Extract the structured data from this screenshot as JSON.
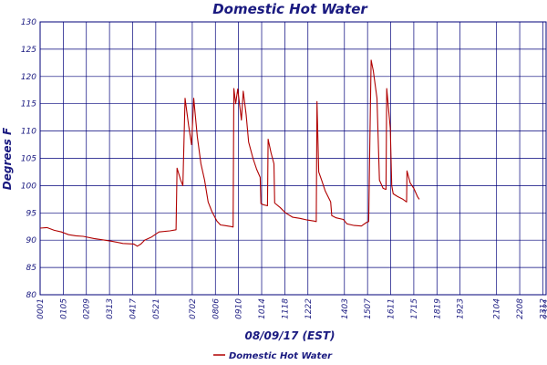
{
  "chart_data": {
    "type": "line",
    "title": "Domestic Hot Water",
    "xlabel": "08/09/17 (EST)",
    "ylabel": "Degrees F",
    "ylim": [
      80,
      130
    ],
    "yticks": [
      80,
      85,
      90,
      95,
      100,
      105,
      110,
      115,
      120,
      125,
      130
    ],
    "x_range_minutes": [
      1,
      1401
    ],
    "xticks": [
      {
        "label": "0001",
        "minute": 1
      },
      {
        "label": "0105",
        "minute": 65
      },
      {
        "label": "0209",
        "minute": 129
      },
      {
        "label": "0313",
        "minute": 193
      },
      {
        "label": "0417",
        "minute": 257
      },
      {
        "label": "0521",
        "minute": 321
      },
      {
        "label": "0702",
        "minute": 422
      },
      {
        "label": "0806",
        "minute": 486
      },
      {
        "label": "0910",
        "minute": 550
      },
      {
        "label": "1014",
        "minute": 614
      },
      {
        "label": "1118",
        "minute": 678
      },
      {
        "label": "1222",
        "minute": 742
      },
      {
        "label": "1403",
        "minute": 843
      },
      {
        "label": "1507",
        "minute": 907
      },
      {
        "label": "1611",
        "minute": 971
      },
      {
        "label": "1715",
        "minute": 1035
      },
      {
        "label": "1819",
        "minute": 1099
      },
      {
        "label": "1923",
        "minute": 1163
      },
      {
        "label": "2104",
        "minute": 1264
      },
      {
        "label": "2208",
        "minute": 1328
      },
      {
        "label": "2312",
        "minute": 1392
      },
      {
        "label": "2321",
        "minute": 1401
      }
    ],
    "grid": true,
    "legend": {
      "position": "bottom-center"
    },
    "series": [
      {
        "name": "Domestic Hot Water",
        "color": "#b00000",
        "points": [
          [
            1,
            92.2
          ],
          [
            20,
            92.3
          ],
          [
            40,
            91.8
          ],
          [
            60,
            91.5
          ],
          [
            80,
            91.0
          ],
          [
            100,
            90.8
          ],
          [
            120,
            90.7
          ],
          [
            150,
            90.3
          ],
          [
            180,
            90.0
          ],
          [
            200,
            89.8
          ],
          [
            230,
            89.4
          ],
          [
            260,
            89.3
          ],
          [
            270,
            88.9
          ],
          [
            280,
            89.3
          ],
          [
            290,
            90.0
          ],
          [
            310,
            90.6
          ],
          [
            330,
            91.5
          ],
          [
            360,
            91.7
          ],
          [
            377,
            91.9
          ],
          [
            380,
            103.2
          ],
          [
            390,
            101.0
          ],
          [
            396,
            100.0
          ],
          [
            402,
            116.0
          ],
          [
            412,
            111.0
          ],
          [
            420,
            107.5
          ],
          [
            426,
            116.0
          ],
          [
            436,
            109.0
          ],
          [
            446,
            104.0
          ],
          [
            456,
            101.0
          ],
          [
            466,
            97.0
          ],
          [
            476,
            95.3
          ],
          [
            490,
            93.5
          ],
          [
            500,
            92.8
          ],
          [
            510,
            92.7
          ],
          [
            530,
            92.5
          ],
          [
            535,
            92.4
          ],
          [
            537,
            117.8
          ],
          [
            542,
            115.0
          ],
          [
            548,
            117.7
          ],
          [
            558,
            112.0
          ],
          [
            563,
            117.3
          ],
          [
            571,
            113.0
          ],
          [
            578,
            108.0
          ],
          [
            590,
            105.0
          ],
          [
            600,
            103.0
          ],
          [
            610,
            101.5
          ],
          [
            612,
            96.7
          ],
          [
            618,
            96.5
          ],
          [
            630,
            96.3
          ],
          [
            632,
            108.5
          ],
          [
            640,
            106.0
          ],
          [
            648,
            104.0
          ],
          [
            650,
            96.8
          ],
          [
            665,
            96.0
          ],
          [
            680,
            95.0
          ],
          [
            700,
            94.2
          ],
          [
            720,
            94.0
          ],
          [
            740,
            93.7
          ],
          [
            760,
            93.5
          ],
          [
            765,
            93.4
          ],
          [
            767,
            115.4
          ],
          [
            772,
            102.5
          ],
          [
            780,
            101.0
          ],
          [
            790,
            99.0
          ],
          [
            805,
            97.0
          ],
          [
            808,
            94.5
          ],
          [
            820,
            94.1
          ],
          [
            840,
            93.8
          ],
          [
            850,
            93.0
          ],
          [
            870,
            92.7
          ],
          [
            890,
            92.6
          ],
          [
            905,
            93.3
          ],
          [
            910,
            93.4
          ],
          [
            913,
            106.0
          ],
          [
            917,
            123.0
          ],
          [
            923,
            121.0
          ],
          [
            933,
            116.0
          ],
          [
            940,
            101.0
          ],
          [
            950,
            99.5
          ],
          [
            958,
            99.3
          ],
          [
            960,
            117.8
          ],
          [
            970,
            110.5
          ],
          [
            974,
            100.0
          ],
          [
            978,
            98.5
          ],
          [
            990,
            98.0
          ],
          [
            1005,
            97.5
          ],
          [
            1015,
            97.0
          ],
          [
            1016,
            102.7
          ],
          [
            1025,
            100.5
          ],
          [
            1035,
            99.5
          ],
          [
            1045,
            98.0
          ],
          [
            1050,
            97.5
          ]
        ]
      }
    ]
  }
}
